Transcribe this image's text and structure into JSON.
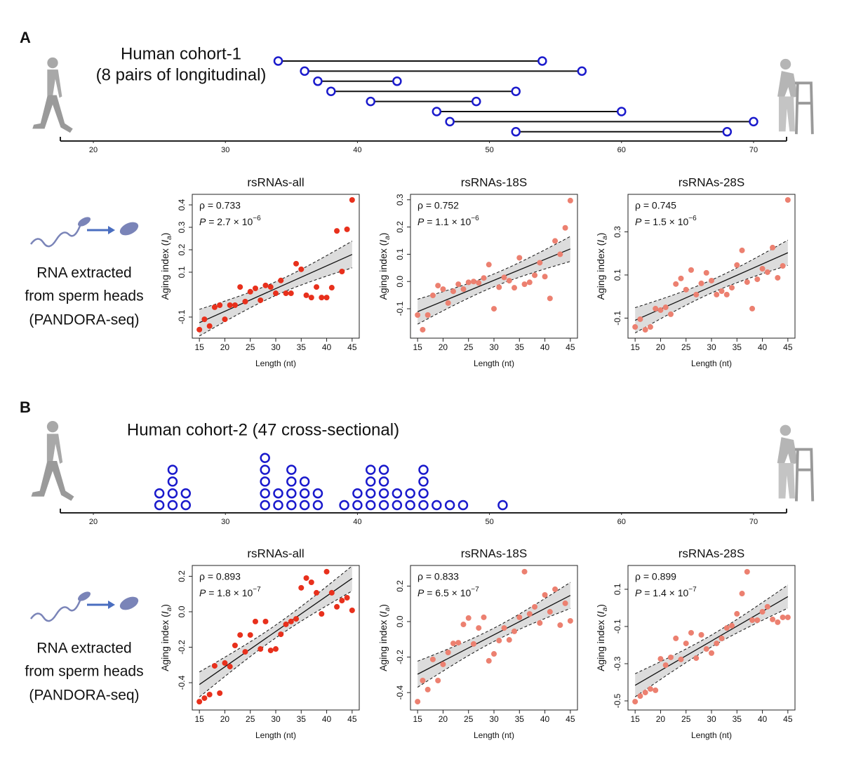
{
  "panels": [
    {
      "label": "A",
      "side_text": [
        "RNA extracted",
        "from sperm heads",
        "(PANDORA-seq)"
      ]
    },
    {
      "label": "B",
      "side_text": [
        "RNA extracted",
        "from sperm heads",
        "(PANDORA-seq)"
      ]
    }
  ],
  "chart_data": [
    {
      "type": "dumbbell",
      "title": "Human cohort-1",
      "subtitle": "(8 pairs of longitudinal)",
      "start": [
        34,
        36,
        37,
        38,
        41,
        46,
        47,
        52
      ],
      "end": [
        54,
        57,
        43,
        52,
        49,
        60,
        70,
        68
      ],
      "color": "#1a1acc",
      "xlim": [
        17.5,
        72.5
      ],
      "xticks": [
        20,
        30,
        40,
        50,
        60,
        70
      ]
    },
    {
      "type": "scatter",
      "title": "rsRNAs-all",
      "color": "#e8301c",
      "fit": true,
      "x": [
        15,
        16,
        17,
        18,
        19,
        20,
        21,
        22,
        23,
        24,
        25,
        26,
        27,
        28,
        29,
        30,
        31,
        32,
        33,
        34,
        35,
        36,
        37,
        38,
        39,
        40,
        41,
        42,
        43,
        44,
        45
      ],
      "values": [
        -0.156,
        -0.11,
        -0.14,
        -0.056,
        -0.047,
        -0.11,
        -0.047,
        -0.047,
        0.034,
        -0.031,
        0.013,
        0.028,
        -0.025,
        0.041,
        0.034,
        0.006,
        0.063,
        0.006,
        0.006,
        0.138,
        0.113,
        -0.003,
        -0.013,
        0.034,
        -0.013,
        -0.013,
        0.031,
        0.284,
        0.103,
        0.291,
        0.422
      ],
      "xlim": [
        13.6,
        46.4
      ],
      "ylim": [
        -0.194,
        0.447
      ],
      "xticks": [
        15,
        20,
        25,
        30,
        35,
        40,
        45
      ],
      "yticks": [
        -0.1,
        0.1,
        0.2,
        0.3,
        0.4
      ],
      "xlabel": "Length (nt)",
      "ylabel": [
        "Aging index (",
        "I",
        "a",
        ")"
      ],
      "rho": "ρ = 0.733",
      "p": [
        "P",
        " = 2.7 × 10",
        "−6"
      ]
    },
    {
      "type": "scatter",
      "title": "rsRNAs-18S",
      "color": "#ec8070",
      "fit": true,
      "x": [
        15,
        16,
        17,
        18,
        19,
        20,
        21,
        22,
        23,
        24,
        25,
        26,
        27,
        28,
        29,
        30,
        31,
        32,
        33,
        34,
        35,
        36,
        37,
        38,
        39,
        40,
        41,
        42,
        43,
        44,
        45
      ],
      "values": [
        -0.123,
        -0.177,
        -0.123,
        -0.051,
        -0.015,
        -0.028,
        -0.079,
        -0.036,
        -0.01,
        -0.028,
        -0.003,
        0.0,
        -0.005,
        0.013,
        0.062,
        -0.1,
        -0.021,
        0.015,
        0.003,
        -0.023,
        0.087,
        -0.01,
        -0.003,
        0.023,
        0.069,
        0.018,
        -0.062,
        0.149,
        0.1,
        0.197,
        0.297
      ],
      "xlim": [
        13.6,
        46.4
      ],
      "ylim": [
        -0.208,
        0.32
      ],
      "xticks": [
        15,
        20,
        25,
        30,
        35,
        40,
        45
      ],
      "yticks": [
        -0.1,
        {
          "value": 0,
          "label": "0.0"
        },
        0.1,
        0.2,
        0.3
      ],
      "xlabel": "Length (nt)",
      "ylabel": [
        "Aging index (",
        "I",
        "a",
        ")"
      ],
      "rho": "ρ = 0.752",
      "p": [
        "P",
        " = 1.1 × 10",
        "−6"
      ]
    },
    {
      "type": "scatter",
      "title": "rsRNAs-28S",
      "color": "#ec8070",
      "fit": true,
      "x": [
        15,
        16,
        17,
        18,
        19,
        20,
        21,
        22,
        23,
        24,
        25,
        26,
        27,
        28,
        29,
        30,
        31,
        32,
        33,
        34,
        35,
        36,
        37,
        38,
        39,
        40,
        41,
        42,
        43,
        44,
        45
      ],
      "values": [
        -0.141,
        -0.105,
        -0.154,
        -0.141,
        -0.056,
        -0.063,
        -0.05,
        -0.082,
        0.058,
        0.084,
        0.032,
        0.123,
        0.009,
        0.061,
        0.11,
        0.074,
        0.009,
        0.025,
        0.009,
        0.041,
        0.146,
        0.214,
        0.067,
        -0.056,
        0.08,
        0.129,
        0.113,
        0.227,
        0.087,
        0.142,
        0.448
      ],
      "xlim": [
        13.6,
        46.4
      ],
      "ylim": [
        -0.193,
        0.474
      ],
      "xticks": [
        15,
        20,
        25,
        30,
        35,
        40,
        45
      ],
      "yticks": [
        -0.1,
        0.1,
        0.3
      ],
      "xlabel": "Length (nt)",
      "ylabel": [
        "Aging index (",
        "I",
        "a",
        ")"
      ],
      "rho": "ρ = 0.745",
      "p": [
        "P",
        " = 1.5 × 10",
        "−6"
      ]
    },
    {
      "type": "dotplot",
      "title": "Human cohort-2 (47 cross-sectional)",
      "x": [
        25,
        26,
        27,
        33,
        34,
        35,
        36,
        37,
        39,
        40,
        41,
        42,
        43,
        44,
        45,
        46,
        47,
        48,
        51
      ],
      "values": [
        2,
        4,
        2,
        5,
        2,
        4,
        3,
        2,
        1,
        2,
        4,
        4,
        2,
        2,
        4,
        1,
        1,
        1,
        1
      ],
      "color": "#1a1acc",
      "xlim": [
        17.5,
        72.5
      ],
      "xticks": [
        20,
        30,
        40,
        50,
        60,
        70
      ]
    },
    {
      "type": "scatter",
      "title": "rsRNAs-all",
      "color": "#e8301c",
      "fit": true,
      "x": [
        15,
        16,
        17,
        18,
        19,
        20,
        21,
        22,
        23,
        24,
        25,
        26,
        27,
        28,
        29,
        30,
        31,
        32,
        33,
        34,
        35,
        36,
        37,
        38,
        39,
        40,
        41,
        42,
        43,
        44,
        45
      ],
      "values": [
        -0.507,
        -0.487,
        -0.467,
        -0.305,
        -0.459,
        -0.289,
        -0.309,
        -0.19,
        -0.131,
        -0.226,
        -0.131,
        -0.055,
        -0.21,
        -0.055,
        -0.218,
        -0.21,
        -0.127,
        -0.071,
        -0.055,
        -0.04,
        0.135,
        0.19,
        0.166,
        0.107,
        -0.012,
        0.226,
        0.107,
        0.028,
        0.063,
        0.079,
        0.008
      ],
      "xlim": [
        13.6,
        46.4
      ],
      "ylim": [
        -0.554,
        0.261
      ],
      "xticks": [
        15,
        20,
        25,
        30,
        35,
        40,
        45
      ],
      "yticks": [
        -0.4,
        -0.2,
        {
          "value": 0,
          "label": "0.0"
        },
        0.2
      ],
      "xlabel": "Length (nt)",
      "ylabel": [
        "Aging index (",
        "I",
        "a",
        ")"
      ],
      "rho": "ρ = 0.893",
      "p": [
        "P",
        " = 1.8 × 10",
        "−7"
      ]
    },
    {
      "type": "scatter",
      "title": "rsRNAs-18S",
      "color": "#ec8070",
      "fit": true,
      "x": [
        15,
        16,
        17,
        18,
        19,
        20,
        21,
        22,
        23,
        24,
        25,
        26,
        27,
        28,
        29,
        30,
        31,
        32,
        33,
        34,
        35,
        36,
        37,
        38,
        39,
        40,
        41,
        42,
        43,
        44,
        45
      ],
      "values": [
        -0.451,
        -0.332,
        -0.383,
        -0.213,
        -0.332,
        -0.241,
        -0.174,
        -0.123,
        -0.119,
        -0.016,
        0.02,
        -0.126,
        -0.036,
        0.024,
        -0.221,
        -0.182,
        -0.107,
        -0.036,
        -0.103,
        -0.055,
        0.024,
        0.281,
        0.043,
        0.083,
        -0.008,
        0.15,
        0.055,
        0.182,
        -0.02,
        0.103,
        0.004
      ],
      "xlim": [
        13.6,
        46.4
      ],
      "ylim": [
        -0.498,
        0.316
      ],
      "xticks": [
        15,
        20,
        25,
        30,
        35,
        40,
        45
      ],
      "yticks": [
        -0.4,
        -0.2,
        {
          "value": 0,
          "label": "0.0"
        },
        0.2
      ],
      "xlabel": "Length (nt)",
      "ylabel": [
        "Aging index (",
        "I",
        "a",
        ")"
      ],
      "rho": "ρ = 0.833",
      "p": [
        "P",
        " = 6.5 × 10",
        "−7"
      ]
    },
    {
      "type": "scatter",
      "title": "rsRNAs-28S",
      "color": "#ec8070",
      "fit": true,
      "x": [
        15,
        16,
        17,
        18,
        19,
        20,
        21,
        22,
        23,
        24,
        25,
        26,
        27,
        28,
        29,
        30,
        31,
        32,
        33,
        34,
        35,
        36,
        37,
        38,
        39,
        40,
        41,
        42,
        43,
        44,
        45
      ],
      "values": [
        -0.504,
        -0.474,
        -0.455,
        -0.436,
        -0.443,
        -0.274,
        -0.308,
        -0.266,
        -0.164,
        -0.277,
        -0.191,
        -0.134,
        -0.27,
        -0.145,
        -0.221,
        -0.243,
        -0.191,
        -0.164,
        -0.108,
        -0.096,
        -0.032,
        0.077,
        0.194,
        -0.066,
        -0.066,
        -0.021,
        0.006,
        -0.062,
        -0.077,
        -0.051,
        -0.051
      ],
      "xlim": [
        13.6,
        46.4
      ],
      "ylim": [
        -0.549,
        0.228
      ],
      "xticks": [
        15,
        20,
        25,
        30,
        35,
        40,
        45
      ],
      "yticks": [
        -0.5,
        -0.3,
        -0.1,
        0.1
      ],
      "xlabel": "Length (nt)",
      "ylabel": [
        "Aging index (",
        "I",
        "a",
        ")"
      ],
      "rho": "ρ = 0.899",
      "p": [
        "P",
        " = 1.4 × 10",
        "−7"
      ]
    }
  ]
}
